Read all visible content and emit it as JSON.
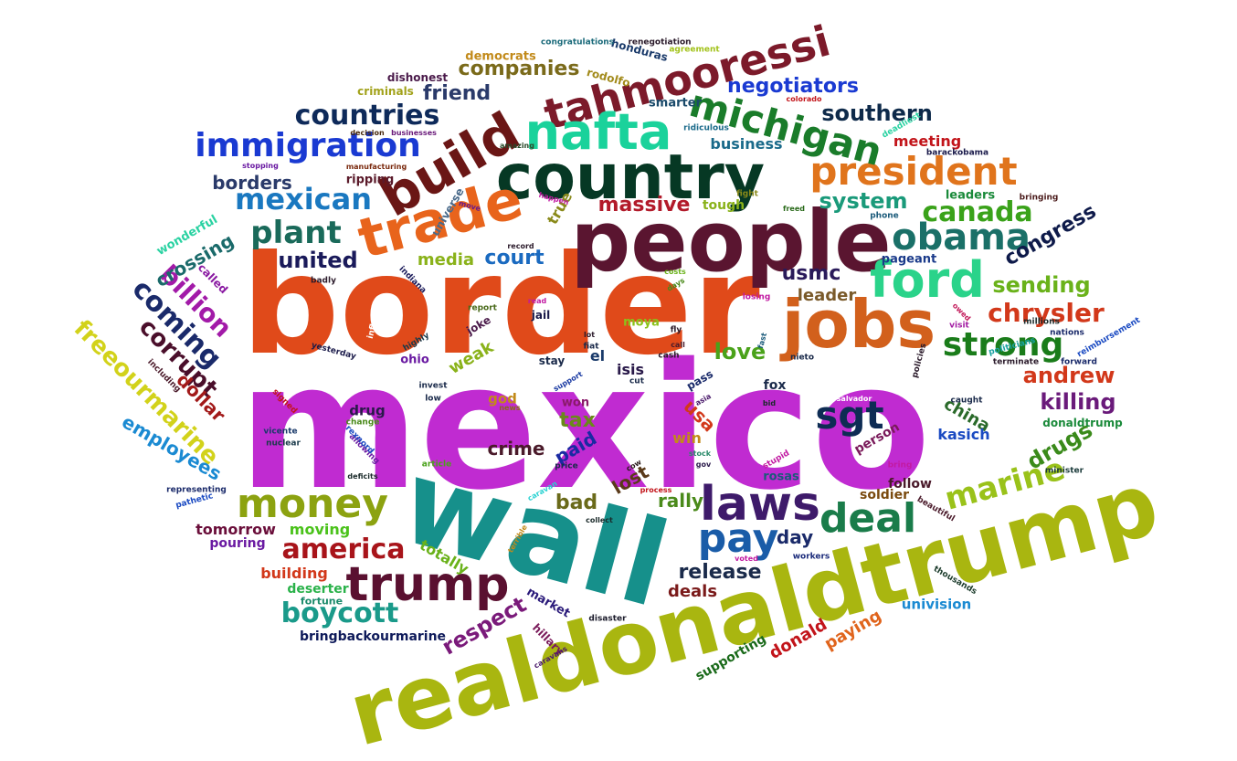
{
  "words": [
    {
      "text": "mexico",
      "color": "#c02bd1"
    },
    {
      "text": "border",
      "color": "#e04a1a"
    },
    {
      "text": "wall",
      "color": "#16908b"
    },
    {
      "text": "realdonaldtrump",
      "color": "#a9b610"
    },
    {
      "text": "people",
      "color": "#5a1530"
    },
    {
      "text": "country",
      "color": "#063824"
    },
    {
      "text": "jobs",
      "color": "#d2601c"
    },
    {
      "text": "trade",
      "color": "#e8641c"
    },
    {
      "text": "build",
      "color": "#6a1615"
    },
    {
      "text": "tahmooressi",
      "color": "#7c1a2a"
    },
    {
      "text": "nafta",
      "color": "#1ad29b"
    },
    {
      "text": "ford",
      "color": "#2ad38a"
    },
    {
      "text": "president",
      "color": "#e0741c"
    },
    {
      "text": "michigan",
      "color": "#1a7c2a"
    },
    {
      "text": "obama",
      "color": "#1a7068"
    },
    {
      "text": "immigration",
      "color": "#1a3ad2"
    },
    {
      "text": "money",
      "color": "#8ca210"
    },
    {
      "text": "laws",
      "color": "#3e1a6a"
    },
    {
      "text": "trump",
      "color": "#5a1030"
    },
    {
      "text": "deal",
      "color": "#1a7c4a"
    },
    {
      "text": "pay",
      "color": "#1a5ca8"
    },
    {
      "text": "sgt",
      "color": "#0e2c54"
    },
    {
      "text": "strong",
      "color": "#1a7c1a"
    },
    {
      "text": "mexican",
      "color": "#1a78c0"
    },
    {
      "text": "plant",
      "color": "#1a6a5a"
    },
    {
      "text": "countries",
      "color": "#0e2a5a"
    },
    {
      "text": "canada",
      "color": "#3aa21a"
    },
    {
      "text": "chrysler",
      "color": "#d2381a"
    },
    {
      "text": "america",
      "color": "#a8141a"
    },
    {
      "text": "boycott",
      "color": "#1a9a8a"
    },
    {
      "text": "marine",
      "color": "#9ac21a"
    },
    {
      "text": "negotiators",
      "color": "#1a3ad2"
    },
    {
      "text": "southern",
      "color": "#0e2a4a"
    },
    {
      "text": "companies",
      "color": "#7a6a1a"
    },
    {
      "text": "friend",
      "color": "#2a3a6a"
    },
    {
      "text": "united",
      "color": "#1a1a5a"
    },
    {
      "text": "court",
      "color": "#1a6ac0"
    },
    {
      "text": "system",
      "color": "#1a9a7a"
    },
    {
      "text": "massive",
      "color": "#b21a2a"
    },
    {
      "text": "usmc",
      "color": "#2a1a5a"
    },
    {
      "text": "leader",
      "color": "#7a5a2a"
    },
    {
      "text": "love",
      "color": "#4aa21a"
    },
    {
      "text": "andrew",
      "color": "#d2381a"
    },
    {
      "text": "killing",
      "color": "#6a1a7a"
    },
    {
      "text": "sending",
      "color": "#6ab21a"
    },
    {
      "text": "congress",
      "color": "#0e1a4a"
    },
    {
      "text": "drugs",
      "color": "#3a8a1a"
    },
    {
      "text": "borders",
      "color": "#2a3a6a"
    },
    {
      "text": "billion",
      "color": "#a21aa8"
    },
    {
      "text": "coming",
      "color": "#1a2a6a"
    },
    {
      "text": "corrupt",
      "color": "#4a0e2a"
    },
    {
      "text": "freeourmarine",
      "color": "#d2d21a"
    },
    {
      "text": "dollar",
      "color": "#a21a1a"
    },
    {
      "text": "employees",
      "color": "#1a8ad2"
    },
    {
      "text": "crossing",
      "color": "#1a6a6a"
    },
    {
      "text": "respect",
      "color": "#7a1a7a"
    },
    {
      "text": "release",
      "color": "#1a2a4a"
    },
    {
      "text": "deals",
      "color": "#7a1a1a"
    },
    {
      "text": "day",
      "color": "#1a2a6a"
    },
    {
      "text": "bad",
      "color": "#6a6a1a"
    },
    {
      "text": "crime",
      "color": "#4a1a2a"
    },
    {
      "text": "rally",
      "color": "#4a8a1a"
    },
    {
      "text": "lost",
      "color": "#5a3a1a"
    },
    {
      "text": "paid",
      "color": "#1a2aa2"
    },
    {
      "text": "tax",
      "color": "#6a8a1a"
    },
    {
      "text": "usa",
      "color": "#d2381a"
    },
    {
      "text": "win",
      "color": "#c28a1a"
    },
    {
      "text": "china",
      "color": "#2a6a2a"
    },
    {
      "text": "kasich",
      "color": "#1a4ac2"
    },
    {
      "text": "tomorrow",
      "color": "#6a0e3a"
    },
    {
      "text": "moving",
      "color": "#4ac21a"
    },
    {
      "text": "pouring",
      "color": "#6a1aa2"
    },
    {
      "text": "building",
      "color": "#d2381a"
    },
    {
      "text": "deserter",
      "color": "#2ab24a"
    },
    {
      "text": "totally",
      "color": "#6ab21a"
    },
    {
      "text": "fortune",
      "color": "#1a8a6a"
    },
    {
      "text": "market",
      "color": "#2a1a7a"
    },
    {
      "text": "bringbackourmarine",
      "color": "#0e1a5a"
    },
    {
      "text": "donald",
      "color": "#c2141a"
    },
    {
      "text": "paying",
      "color": "#e0641c"
    },
    {
      "text": "univision",
      "color": "#1a8ad2"
    },
    {
      "text": "supporting",
      "color": "#1a6a1a"
    },
    {
      "text": "hillary",
      "color": "#7a1a5a"
    },
    {
      "text": "business",
      "color": "#1a6a8a"
    },
    {
      "text": "meeting",
      "color": "#c2141a"
    },
    {
      "text": "leaders",
      "color": "#1a8a3a"
    },
    {
      "text": "media",
      "color": "#8ab21a"
    },
    {
      "text": "pageant",
      "color": "#1a3a8a"
    },
    {
      "text": "isis",
      "color": "#2a1a4a"
    },
    {
      "text": "el",
      "color": "#1a3a6a"
    },
    {
      "text": "fox",
      "color": "#1a2a4a"
    },
    {
      "text": "person",
      "color": "#7a1a5a"
    },
    {
      "text": "soldier",
      "color": "#7a4a0e"
    },
    {
      "text": "follow",
      "color": "#4a1a2a"
    },
    {
      "text": "rosas",
      "color": "#1a5a7a"
    },
    {
      "text": "weak",
      "color": "#8ab21a"
    },
    {
      "text": "true",
      "color": "#8a8a1a"
    },
    {
      "text": "ohio",
      "color": "#6a1aa2"
    },
    {
      "text": "stay",
      "color": "#1a2a4a"
    },
    {
      "text": "jail",
      "color": "#1a1a4a"
    },
    {
      "text": "joke",
      "color": "#4a1a4a"
    },
    {
      "text": "moya",
      "color": "#8ac21a"
    },
    {
      "text": "drug",
      "color": "#2a1a4a"
    },
    {
      "text": "won",
      "color": "#8a1a6a"
    },
    {
      "text": "god",
      "color": "#c28a1a"
    },
    {
      "text": "pass",
      "color": "#1a2a6a"
    },
    {
      "text": "tough",
      "color": "#8ab21a"
    },
    {
      "text": "ripping",
      "color": "#5a1a2a"
    },
    {
      "text": "universe",
      "color": "#4a6a8a"
    },
    {
      "text": "smarter",
      "color": "#1a4a6a"
    },
    {
      "text": "dishonest",
      "color": "#4a1a4a"
    },
    {
      "text": "criminals",
      "color": "#a2a21a"
    },
    {
      "text": "democrats",
      "color": "#c28a1a"
    },
    {
      "text": "rodolfo",
      "color": "#a28a1a"
    },
    {
      "text": "honduras",
      "color": "#1a3a6a"
    },
    {
      "text": "congratulations",
      "color": "#1a6a7a"
    },
    {
      "text": "renegotiation",
      "color": "#2a1a2a"
    },
    {
      "text": "agreement",
      "color": "#a2c21a"
    },
    {
      "text": "colorado",
      "color": "#c2141a"
    },
    {
      "text": "deadliest",
      "color": "#2ad2a2"
    },
    {
      "text": "ridiculous",
      "color": "#1a6a8a"
    },
    {
      "text": "amazing",
      "color": "#2a4a2a"
    },
    {
      "text": "decision",
      "color": "#4a2a0e"
    },
    {
      "text": "businesses",
      "color": "#6a1a7a"
    },
    {
      "text": "stopping",
      "color": "#6a1aa2"
    },
    {
      "text": "manufacturing",
      "color": "#7a2a0e"
    },
    {
      "text": "barackobama",
      "color": "#1a1a4a"
    },
    {
      "text": "fight",
      "color": "#8a8a1a"
    },
    {
      "text": "freed",
      "color": "#2a6a1a"
    },
    {
      "text": "bringing",
      "color": "#4a1a1a"
    },
    {
      "text": "phone",
      "color": "#1a5a7a"
    },
    {
      "text": "happen",
      "color": "#c21aa2"
    },
    {
      "text": "move",
      "color": "#6a1a8a"
    },
    {
      "text": "wonderful",
      "color": "#2ad2a2"
    },
    {
      "text": "called",
      "color": "#8a1aa2"
    },
    {
      "text": "record",
      "color": "#2a1a2a"
    },
    {
      "text": "indiana",
      "color": "#1a1a5a"
    },
    {
      "text": "badly",
      "color": "#2a1a2a"
    },
    {
      "text": "costs",
      "color": "#6ab21a"
    },
    {
      "text": "days",
      "color": "#4a8a1a"
    },
    {
      "text": "losing",
      "color": "#c21aa2"
    },
    {
      "text": "owed",
      "color": "#c21a5a"
    },
    {
      "text": "visit",
      "color": "#a21aa2"
    },
    {
      "text": "millions",
      "color": "#1a2a2a"
    },
    {
      "text": "nations",
      "color": "#1a2a6a"
    },
    {
      "text": "reimbursement",
      "color": "#1a4ac2"
    },
    {
      "text": "forward",
      "color": "#1a2a6a"
    },
    {
      "text": "politicians",
      "color": "#1aa2a2"
    },
    {
      "text": "terminate",
      "color": "#2a1a2a"
    },
    {
      "text": "nieto",
      "color": "#1a2a4a"
    },
    {
      "text": "policies",
      "color": "#2a1a2a"
    },
    {
      "text": "caught",
      "color": "#1a2a4a"
    },
    {
      "text": "donaldtrump",
      "color": "#1a8a3a"
    },
    {
      "text": "minister",
      "color": "#1a3a3a"
    },
    {
      "text": "bring",
      "color": "#c21aa2"
    },
    {
      "text": "beautiful",
      "color": "#4a1a2a"
    },
    {
      "text": "workers",
      "color": "#1a2a7a"
    },
    {
      "text": "thousands",
      "color": "#1a3a2a"
    },
    {
      "text": "salvador",
      "color": "#ffffff"
    },
    {
      "text": "voted",
      "color": "#c21aa2"
    },
    {
      "text": "stupid",
      "color": "#c21aa2"
    },
    {
      "text": "stock",
      "color": "#2a8a6a"
    },
    {
      "text": "gov",
      "color": "#2a1a4a"
    },
    {
      "text": "bid",
      "color": "#1a2a2a"
    },
    {
      "text": "asia",
      "color": "#4a1a6a"
    },
    {
      "text": "cut",
      "color": "#1a2a4a"
    },
    {
      "text": "cow",
      "color": "#2a1a1a"
    },
    {
      "text": "process",
      "color": "#c2141a"
    },
    {
      "text": "collect",
      "color": "#1a2a2a"
    },
    {
      "text": "disaster",
      "color": "#1a1a2a"
    },
    {
      "text": "caravans",
      "color": "#4a1a6a"
    },
    {
      "text": "terrible",
      "color": "#c28a1a"
    },
    {
      "text": "caravan",
      "color": "#2ad2d2"
    },
    {
      "text": "price",
      "color": "#1a2a4a"
    },
    {
      "text": "article",
      "color": "#4aa21a"
    },
    {
      "text": "deficits",
      "color": "#1a2a2a"
    },
    {
      "text": "allowing",
      "color": "#6a1aa2"
    },
    {
      "text": "rexnord",
      "color": "#1a4ac2"
    },
    {
      "text": "change",
      "color": "#4a8a1a"
    },
    {
      "text": "nuclear",
      "color": "#1a3a4a"
    },
    {
      "text": "vicente",
      "color": "#1a3a6a"
    },
    {
      "text": "signed",
      "color": "#c2141a"
    },
    {
      "text": "news",
      "color": "#8a6a1a"
    },
    {
      "text": "low",
      "color": "#1a2a4a"
    },
    {
      "text": "invest",
      "color": "#1a2a4a"
    },
    {
      "text": "highly",
      "color": "#1a3a4a"
    },
    {
      "text": "including",
      "color": "#4a1a2a"
    },
    {
      "text": "yesterday",
      "color": "#1a1a4a"
    },
    {
      "text": "inflow",
      "color": "#ffffff"
    },
    {
      "text": "read",
      "color": "#c21aa2"
    },
    {
      "text": "report",
      "color": "#4a6a1a"
    },
    {
      "text": "fiat",
      "color": "#1a2a4a"
    },
    {
      "text": "lot",
      "color": "#2a1a2a"
    },
    {
      "text": "cash",
      "color": "#2a1a2a"
    },
    {
      "text": "call",
      "color": "#4a1a2a"
    },
    {
      "text": "fast",
      "color": "#1a5a7a"
    },
    {
      "text": "fly",
      "color": "#2a1a2a"
    },
    {
      "text": "support",
      "color": "#1a3aa2"
    },
    {
      "text": "representing",
      "color": "#1a2a6a"
    },
    {
      "text": "pathetic",
      "color": "#1a4ac2"
    }
  ]
}
